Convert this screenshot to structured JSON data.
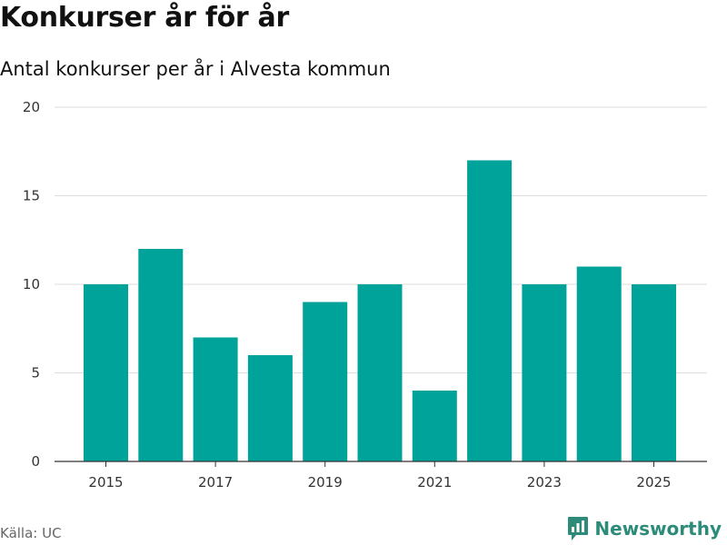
{
  "chart_data": {
    "type": "bar",
    "title": "Konkurser år för år",
    "subtitle": "Antal konkurser per år i Alvesta kommun",
    "x": [
      2015,
      2016,
      2017,
      2018,
      2019,
      2020,
      2021,
      2022,
      2023,
      2024,
      2025
    ],
    "values": [
      10,
      12,
      7,
      6,
      9,
      10,
      4,
      17,
      10,
      11,
      10
    ],
    "xticks": [
      "2015",
      "2017",
      "2019",
      "2021",
      "2023",
      "2025"
    ],
    "yticks": [
      "0",
      "5",
      "10",
      "15",
      "20"
    ],
    "ylim": [
      0,
      20
    ],
    "xlabel": "",
    "ylabel": "",
    "grid": true,
    "bar_color": "#00a39a",
    "source": "Källa: UC"
  },
  "brand": {
    "name": "Newsworthy",
    "logo_icon": "newsworthy-logo-icon",
    "color": "#2c8c79"
  }
}
